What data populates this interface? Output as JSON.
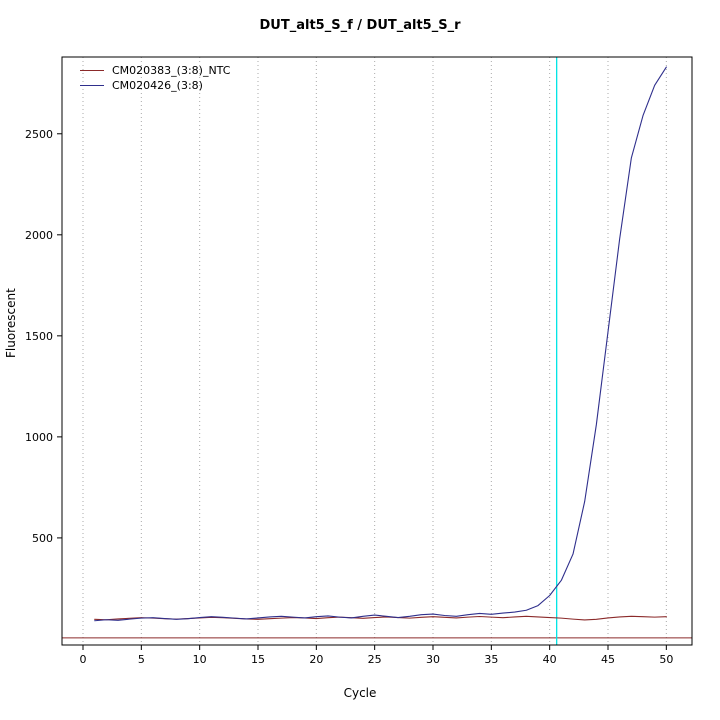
{
  "chart_data": {
    "type": "line",
    "title": "DUT_alt5_S_f / DUT_alt5_S_r",
    "xlabel": "Cycle",
    "ylabel": "Fluorescent",
    "xlim": [
      -1.8,
      52.2
    ],
    "ylim": [
      -30,
      2880
    ],
    "x_ticks": [
      0,
      5,
      10,
      15,
      20,
      25,
      30,
      35,
      40,
      45,
      50
    ],
    "y_ticks": [
      500,
      1000,
      1500,
      2000,
      2500
    ],
    "grid": "vertical-dotted",
    "legend_position": "top-left",
    "threshold_value": 5,
    "ct_line_x": 40.6,
    "colors": {
      "threshold_line": "#8b2a2a",
      "ct_line": "#00e5e5",
      "grid": "#aaaaaa",
      "axis": "#000000",
      "background": "#ffffff"
    },
    "x": [
      1,
      2,
      3,
      4,
      5,
      6,
      7,
      8,
      9,
      10,
      11,
      12,
      13,
      14,
      15,
      16,
      17,
      18,
      19,
      20,
      21,
      22,
      23,
      24,
      25,
      26,
      27,
      28,
      29,
      30,
      31,
      32,
      33,
      34,
      35,
      36,
      37,
      38,
      39,
      40,
      41,
      42,
      43,
      44,
      45,
      46,
      47,
      48,
      49,
      50
    ],
    "series": [
      {
        "name": "CM020383_(3:8)_NTC",
        "color": "#8b2a2a",
        "values": [
          97,
          95,
          99,
          102,
          105,
          103,
          100,
          98,
          101,
          104,
          107,
          105,
          102,
          99,
          97,
          100,
          103,
          106,
          104,
          101,
          105,
          108,
          105,
          102,
          106,
          109,
          106,
          103,
          107,
          110,
          107,
          104,
          108,
          111,
          108,
          105,
          109,
          112,
          109,
          106,
          103,
          98,
          94,
          97,
          104,
          109,
          112,
          110,
          108,
          110
        ]
      },
      {
        "name": "CM020426_(3:8)",
        "color": "#2f2f8c",
        "values": [
          90,
          95,
          92,
          98,
          103,
          105,
          101,
          97,
          100,
          106,
          110,
          107,
          103,
          99,
          104,
          109,
          112,
          108,
          104,
          110,
          114,
          108,
          104,
          112,
          118,
          112,
          106,
          112,
          120,
          123,
          116,
          112,
          120,
          126,
          122,
          128,
          133,
          142,
          165,
          215,
          290,
          420,
          680,
          1060,
          1520,
          1980,
          2380,
          2590,
          2740,
          2830
        ]
      }
    ]
  }
}
